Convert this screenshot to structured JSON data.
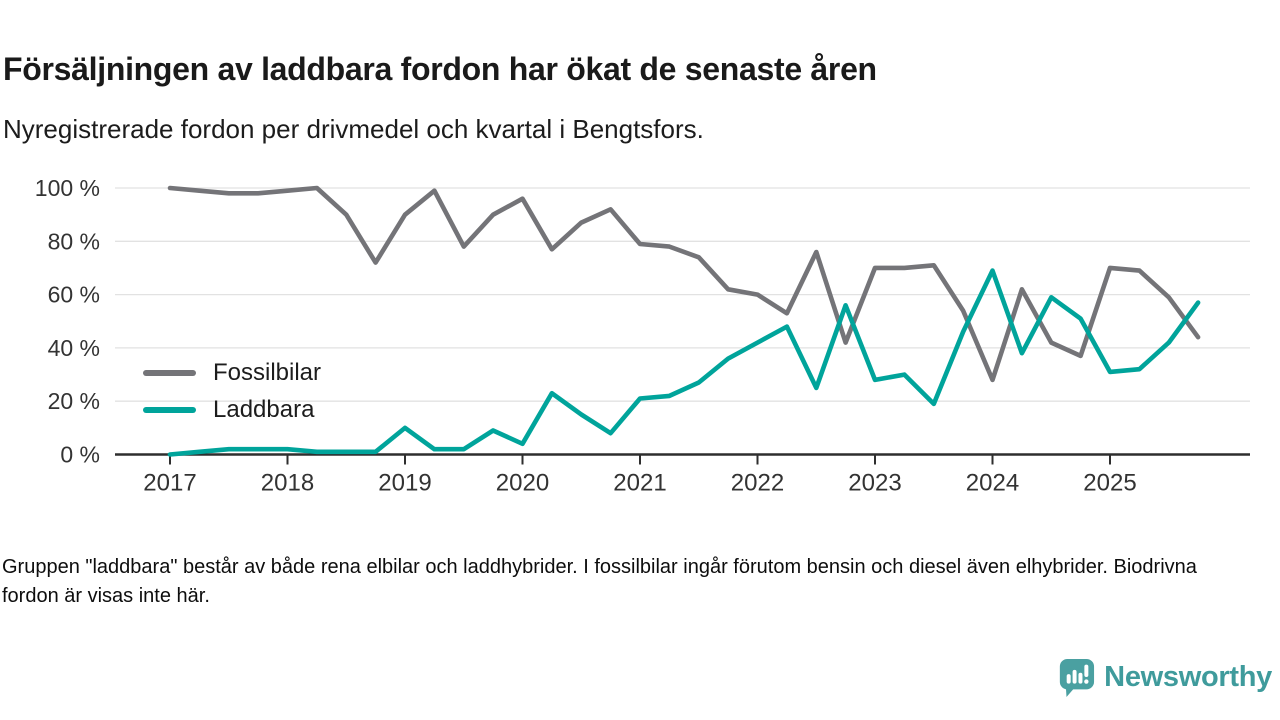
{
  "chart_data": {
    "type": "line",
    "title": "Försäljningen av laddbara fordon har ökat de senaste åren",
    "subtitle": "Nyregistrerade fordon per drivmedel och kvartal i Bengtsfors.",
    "footnote": "Gruppen \"laddbara\" består av både rena elbilar och laddhybrider. I fossilbilar ingår förutom bensin och diesel även elhybrider. Biodrivna fordon är visas inte här.",
    "x_unit": "quarter",
    "x_start": "2017 Q1",
    "x_end": "2025 Q4",
    "points_per_year": 4,
    "x_tick_labels": [
      "2017",
      "2018",
      "2019",
      "2020",
      "2021",
      "2022",
      "2023",
      "2024",
      "2025"
    ],
    "y_tick_labels": [
      "0 %",
      "20 %",
      "40 %",
      "60 %",
      "80 %",
      "100 %"
    ],
    "y_tick_values": [
      0,
      20,
      40,
      60,
      80,
      100
    ],
    "ylim": [
      0,
      100
    ],
    "grid": "horizontal",
    "legend_position": "inside-left",
    "axis_color": "#2e2e2e",
    "grid_color": "#e2e2e2",
    "tick_label_color": "#333333",
    "series": [
      {
        "name": "Fossilbilar",
        "color": "#747478",
        "values": [
          100,
          99,
          98,
          98,
          99,
          100,
          90,
          72,
          90,
          99,
          78,
          90,
          96,
          77,
          87,
          92,
          79,
          78,
          74,
          62,
          60,
          53,
          76,
          42,
          70,
          70,
          71,
          54,
          28,
          62,
          42,
          37,
          70,
          69,
          59,
          44
        ]
      },
      {
        "name": "Laddbara",
        "color": "#00a49b",
        "values": [
          0,
          1,
          2,
          2,
          2,
          1,
          1,
          1,
          10,
          2,
          2,
          9,
          4,
          23,
          15,
          8,
          21,
          22,
          27,
          36,
          42,
          48,
          25,
          56,
          28,
          30,
          19,
          46,
          69,
          38,
          59,
          51,
          31,
          32,
          42,
          57
        ]
      }
    ]
  },
  "logo": {
    "brand": "Newsworthy",
    "text_color": "#3f9b9c",
    "icon_color": "#4aa0a1",
    "icon": "newsworthy-speech-bubble-chart-icon"
  }
}
